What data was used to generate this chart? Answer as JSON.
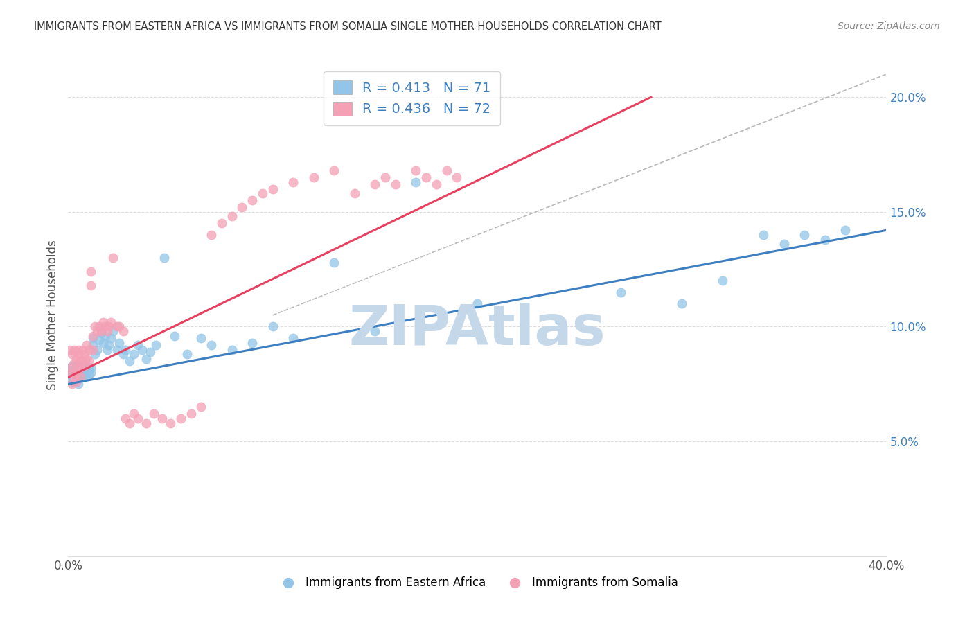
{
  "title": "IMMIGRANTS FROM EASTERN AFRICA VS IMMIGRANTS FROM SOMALIA SINGLE MOTHER HOUSEHOLDS CORRELATION CHART",
  "source": "Source: ZipAtlas.com",
  "ylabel": "Single Mother Households",
  "xlim": [
    0.0,
    0.4
  ],
  "ylim": [
    0.0,
    0.21
  ],
  "x_tick_labels": [
    "0.0%",
    "",
    "",
    "",
    "",
    "",
    "",
    "",
    "40.0%"
  ],
  "y_ticks_right": [
    0.05,
    0.1,
    0.15,
    0.2
  ],
  "y_tick_labels_right": [
    "5.0%",
    "10.0%",
    "15.0%",
    "20.0%"
  ],
  "blue_color": "#92c5e8",
  "pink_color": "#f4a0b5",
  "blue_line_color": "#3d7fc1",
  "pink_line_color": "#e84060",
  "dashed_line_color": "#b8b8b8",
  "legend_R_blue": "0.413",
  "legend_N_blue": "71",
  "legend_R_pink": "0.436",
  "legend_N_pink": "72",
  "watermark": "ZIPAtlas",
  "watermark_color": "#c5d8ea",
  "blue_line_x": [
    0.0,
    0.4
  ],
  "blue_line_y": [
    0.075,
    0.142
  ],
  "pink_line_x": [
    0.0,
    0.285
  ],
  "pink_line_y": [
    0.078,
    0.2
  ],
  "dash_line_x": [
    0.1,
    0.4
  ],
  "dash_line_y": [
    0.105,
    0.21
  ],
  "blue_scatter_x": [
    0.001,
    0.001,
    0.002,
    0.002,
    0.002,
    0.003,
    0.003,
    0.003,
    0.004,
    0.004,
    0.004,
    0.005,
    0.005,
    0.005,
    0.006,
    0.006,
    0.007,
    0.007,
    0.008,
    0.008,
    0.009,
    0.009,
    0.01,
    0.01,
    0.011,
    0.011,
    0.012,
    0.012,
    0.013,
    0.014,
    0.015,
    0.016,
    0.017,
    0.018,
    0.019,
    0.02,
    0.021,
    0.022,
    0.024,
    0.025,
    0.027,
    0.028,
    0.03,
    0.032,
    0.034,
    0.036,
    0.038,
    0.04,
    0.043,
    0.047,
    0.052,
    0.058,
    0.065,
    0.07,
    0.08,
    0.09,
    0.1,
    0.11,
    0.13,
    0.15,
    0.17,
    0.2,
    0.24,
    0.27,
    0.3,
    0.32,
    0.34,
    0.35,
    0.36,
    0.37,
    0.38
  ],
  "blue_scatter_y": [
    0.079,
    0.082,
    0.078,
    0.083,
    0.076,
    0.079,
    0.082,
    0.077,
    0.08,
    0.083,
    0.076,
    0.079,
    0.075,
    0.081,
    0.079,
    0.082,
    0.083,
    0.078,
    0.079,
    0.082,
    0.08,
    0.083,
    0.079,
    0.081,
    0.08,
    0.082,
    0.092,
    0.095,
    0.088,
    0.09,
    0.094,
    0.097,
    0.093,
    0.096,
    0.09,
    0.092,
    0.095,
    0.098,
    0.09,
    0.093,
    0.088,
    0.09,
    0.085,
    0.088,
    0.092,
    0.09,
    0.086,
    0.089,
    0.092,
    0.13,
    0.096,
    0.088,
    0.095,
    0.092,
    0.09,
    0.093,
    0.1,
    0.095,
    0.128,
    0.098,
    0.163,
    0.11,
    0.103,
    0.115,
    0.11,
    0.12,
    0.14,
    0.136,
    0.14,
    0.138,
    0.142
  ],
  "pink_scatter_x": [
    0.001,
    0.001,
    0.002,
    0.002,
    0.002,
    0.003,
    0.003,
    0.003,
    0.004,
    0.004,
    0.004,
    0.005,
    0.005,
    0.005,
    0.006,
    0.006,
    0.006,
    0.007,
    0.007,
    0.008,
    0.008,
    0.009,
    0.009,
    0.01,
    0.01,
    0.011,
    0.011,
    0.012,
    0.012,
    0.013,
    0.014,
    0.015,
    0.016,
    0.017,
    0.018,
    0.019,
    0.02,
    0.021,
    0.022,
    0.024,
    0.025,
    0.027,
    0.028,
    0.03,
    0.032,
    0.034,
    0.038,
    0.042,
    0.046,
    0.05,
    0.055,
    0.06,
    0.065,
    0.07,
    0.075,
    0.08,
    0.085,
    0.09,
    0.095,
    0.1,
    0.11,
    0.12,
    0.13,
    0.14,
    0.15,
    0.155,
    0.16,
    0.17,
    0.175,
    0.18,
    0.185,
    0.19
  ],
  "pink_scatter_y": [
    0.082,
    0.09,
    0.075,
    0.088,
    0.08,
    0.084,
    0.078,
    0.09,
    0.076,
    0.086,
    0.08,
    0.088,
    0.083,
    0.09,
    0.085,
    0.082,
    0.078,
    0.09,
    0.085,
    0.083,
    0.088,
    0.092,
    0.086,
    0.09,
    0.085,
    0.118,
    0.124,
    0.09,
    0.096,
    0.1,
    0.098,
    0.1,
    0.098,
    0.102,
    0.1,
    0.098,
    0.1,
    0.102,
    0.13,
    0.1,
    0.1,
    0.098,
    0.06,
    0.058,
    0.062,
    0.06,
    0.058,
    0.062,
    0.06,
    0.058,
    0.06,
    0.062,
    0.065,
    0.14,
    0.145,
    0.148,
    0.152,
    0.155,
    0.158,
    0.16,
    0.163,
    0.165,
    0.168,
    0.158,
    0.162,
    0.165,
    0.162,
    0.168,
    0.165,
    0.162,
    0.168,
    0.165
  ]
}
